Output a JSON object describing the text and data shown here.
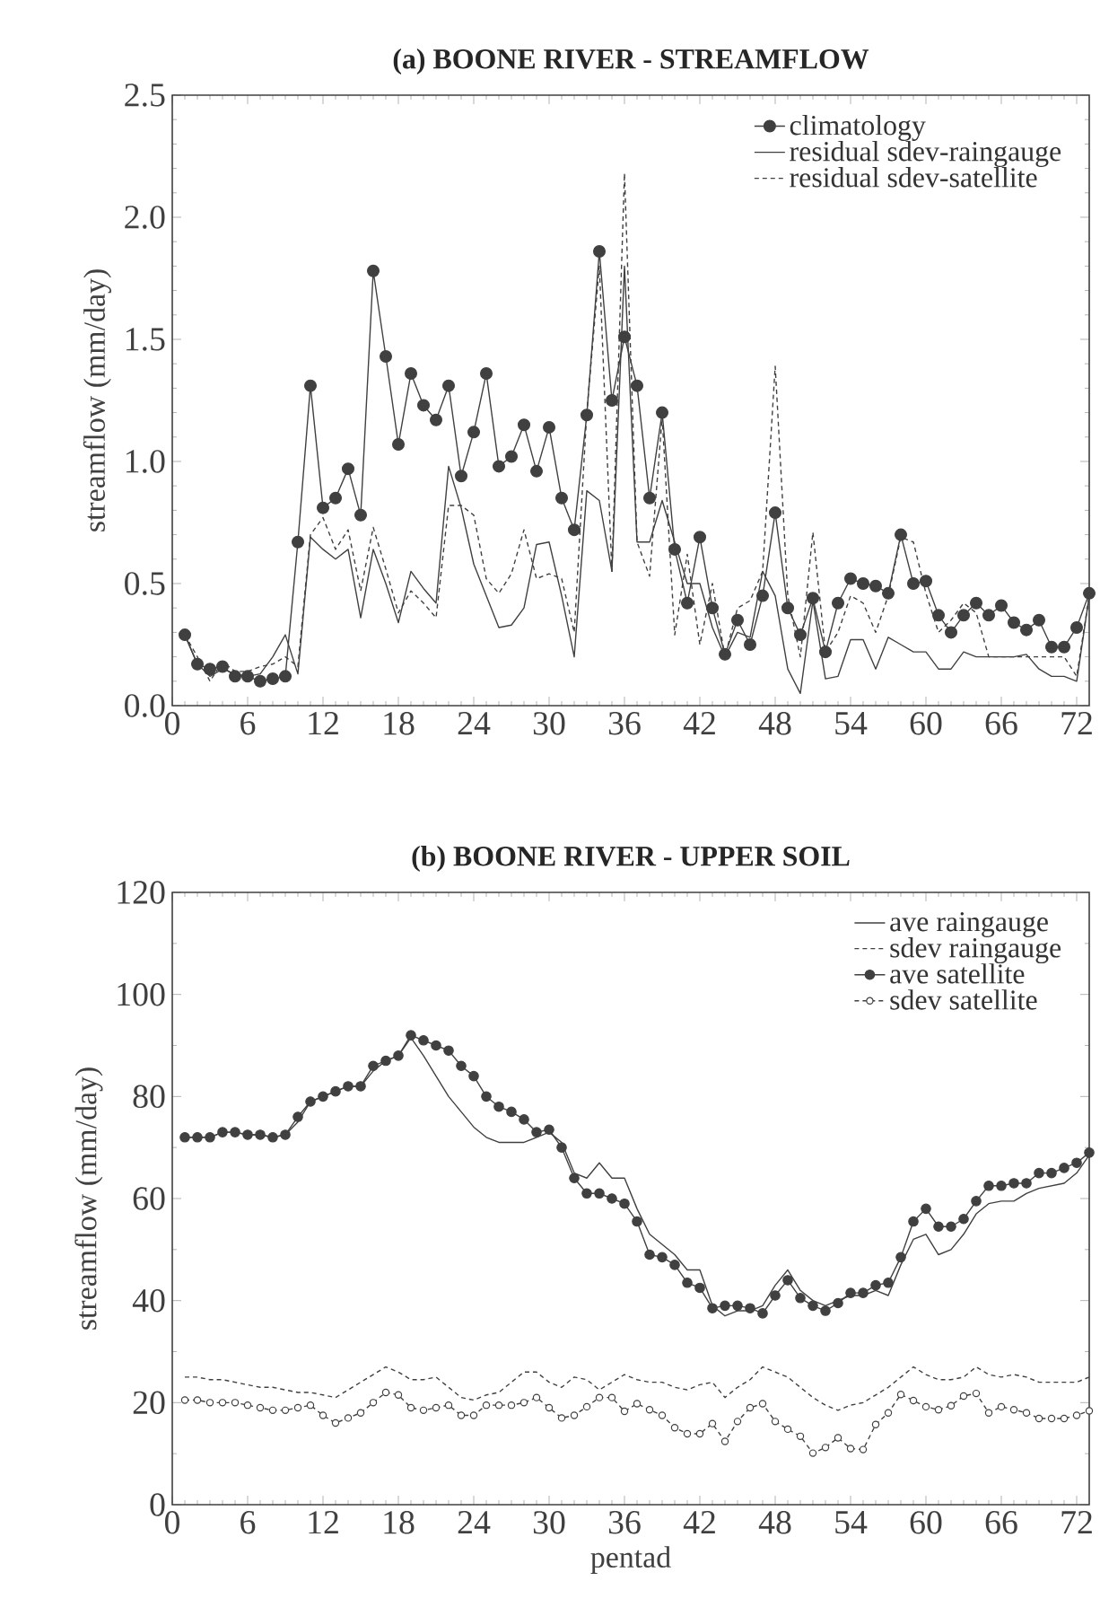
{
  "chart_data": [
    {
      "type": "line",
      "title": "(a) BOONE RIVER - STREAMFLOW",
      "ylabel": "streamflow (mm/day)",
      "x": [
        1,
        2,
        3,
        4,
        5,
        6,
        7,
        8,
        9,
        10,
        11,
        12,
        13,
        14,
        15,
        16,
        17,
        18,
        19,
        20,
        21,
        22,
        23,
        24,
        25,
        26,
        27,
        28,
        29,
        30,
        31,
        32,
        33,
        34,
        35,
        36,
        37,
        38,
        39,
        40,
        41,
        42,
        43,
        44,
        45,
        46,
        47,
        48,
        49,
        50,
        51,
        52,
        53,
        54,
        55,
        56,
        57,
        58,
        59,
        60,
        61,
        62,
        63,
        64,
        65,
        66,
        67,
        68,
        69,
        70,
        71,
        72,
        73
      ],
      "xlim": [
        0,
        73
      ],
      "xticks": [
        0,
        6,
        12,
        18,
        24,
        30,
        36,
        42,
        48,
        54,
        60,
        66,
        72
      ],
      "ylim": [
        0,
        2.5
      ],
      "yticks": [
        {
          "value": 0,
          "label": "0.0"
        },
        0.5,
        {
          "value": 1,
          "label": "1.0"
        },
        1.5,
        {
          "value": 2,
          "label": "2.0"
        },
        2.5
      ],
      "legend": "top right",
      "series": [
        {
          "name": "climatology",
          "color": "#404040",
          "marker": "circle",
          "line_style": "solid",
          "values": [
            0.29,
            0.17,
            0.15,
            0.16,
            0.12,
            0.12,
            0.1,
            0.11,
            0.12,
            0.67,
            1.31,
            0.81,
            0.85,
            0.97,
            0.78,
            1.78,
            1.43,
            1.07,
            1.36,
            1.23,
            1.17,
            1.31,
            0.94,
            1.12,
            1.36,
            0.98,
            1.02,
            1.15,
            0.96,
            1.14,
            0.85,
            0.72,
            1.19,
            1.86,
            1.25,
            1.51,
            1.31,
            0.85,
            1.2,
            0.64,
            0.42,
            0.69,
            0.4,
            0.21,
            0.35,
            0.25,
            0.45,
            0.79,
            0.4,
            0.29,
            0.44,
            0.22,
            0.42,
            0.52,
            0.5,
            0.49,
            0.46,
            0.7,
            0.5,
            0.51,
            0.37,
            0.3,
            0.37,
            0.42,
            0.37,
            0.41,
            0.34,
            0.31,
            0.35,
            0.24,
            0.24,
            0.32,
            0.46
          ]
        },
        {
          "name": "residual sdev-raingauge",
          "color": "#404040",
          "marker": "none",
          "line_style": "solid",
          "values": [
            0.29,
            0.17,
            0.12,
            0.15,
            0.13,
            0.12,
            0.13,
            0.2,
            0.29,
            0.13,
            0.69,
            0.64,
            0.6,
            0.64,
            0.36,
            0.64,
            0.5,
            0.34,
            0.55,
            0.48,
            0.42,
            0.98,
            0.81,
            0.58,
            0.45,
            0.32,
            0.33,
            0.4,
            0.66,
            0.67,
            0.45,
            0.2,
            0.88,
            0.84,
            0.55,
            1.8,
            0.67,
            0.67,
            0.84,
            0.67,
            0.5,
            0.5,
            0.32,
            0.2,
            0.3,
            0.28,
            0.55,
            0.45,
            0.15,
            0.05,
            0.43,
            0.11,
            0.12,
            0.27,
            0.27,
            0.15,
            0.28,
            0.25,
            0.22,
            0.22,
            0.15,
            0.15,
            0.22,
            0.2,
            0.2,
            0.2,
            0.2,
            0.21,
            0.15,
            0.12,
            0.12,
            0.1,
            0.45
          ]
        },
        {
          "name": "residual sdev-satellite",
          "color": "#404040",
          "marker": "none",
          "line_style": "dashed",
          "values": [
            0.29,
            0.2,
            0.1,
            0.18,
            0.14,
            0.14,
            0.16,
            0.17,
            0.2,
            0.16,
            0.7,
            0.77,
            0.64,
            0.72,
            0.47,
            0.73,
            0.56,
            0.38,
            0.47,
            0.42,
            0.36,
            0.82,
            0.82,
            0.78,
            0.52,
            0.46,
            0.54,
            0.72,
            0.52,
            0.54,
            0.52,
            0.3,
            1.2,
            1.8,
            0.55,
            2.18,
            0.67,
            0.53,
            1.18,
            0.29,
            0.62,
            0.25,
            0.5,
            0.2,
            0.4,
            0.43,
            0.55,
            1.39,
            0.45,
            0.2,
            0.71,
            0.22,
            0.3,
            0.45,
            0.42,
            0.3,
            0.45,
            0.69,
            0.67,
            0.46,
            0.3,
            0.35,
            0.42,
            0.38,
            0.2,
            0.2,
            0.2,
            0.2,
            0.2,
            0.2,
            0.2,
            0.12,
            0.45
          ]
        }
      ]
    },
    {
      "type": "line",
      "title": "(b) BOONE RIVER - UPPER SOIL",
      "xlabel": "pentad",
      "ylabel": "streamflow (mm/day)",
      "x": [
        1,
        2,
        3,
        4,
        5,
        6,
        7,
        8,
        9,
        10,
        11,
        12,
        13,
        14,
        15,
        16,
        17,
        18,
        19,
        20,
        21,
        22,
        23,
        24,
        25,
        26,
        27,
        28,
        29,
        30,
        31,
        32,
        33,
        34,
        35,
        36,
        37,
        38,
        39,
        40,
        41,
        42,
        43,
        44,
        45,
        46,
        47,
        48,
        49,
        50,
        51,
        52,
        53,
        54,
        55,
        56,
        57,
        58,
        59,
        60,
        61,
        62,
        63,
        64,
        65,
        66,
        67,
        68,
        69,
        70,
        71,
        72,
        73
      ],
      "xlim": [
        0,
        73
      ],
      "xticks": [
        0,
        6,
        12,
        18,
        24,
        30,
        36,
        42,
        48,
        54,
        60,
        66,
        72
      ],
      "ylim": [
        0,
        120
      ],
      "yticks": [
        0,
        20,
        40,
        60,
        80,
        100,
        120
      ],
      "legend": "top right",
      "series": [
        {
          "name": "ave raingauge",
          "color": "#404040",
          "marker": "none",
          "line_style": "solid",
          "values": [
            72,
            72,
            72,
            73,
            73,
            72.5,
            72.5,
            72,
            72.5,
            75,
            79,
            80,
            81,
            82,
            82,
            85,
            87,
            88,
            91.5,
            88,
            84,
            80,
            77,
            74,
            72,
            71,
            71,
            71,
            72,
            73,
            71,
            65,
            64,
            67,
            64,
            64,
            58,
            53,
            51,
            49,
            46,
            46,
            39,
            37,
            38,
            38,
            39,
            43,
            46,
            42,
            40,
            39,
            40,
            41,
            41,
            42,
            41,
            47,
            52,
            53,
            49,
            50,
            53,
            57,
            59,
            59.5,
            59.5,
            61,
            62,
            62.5,
            63,
            65,
            68.5
          ]
        },
        {
          "name": "sdev raingauge",
          "color": "#404040",
          "marker": "none",
          "line_style": "dashed",
          "values": [
            25,
            25,
            24.5,
            24.5,
            24,
            23.5,
            23,
            23,
            22.5,
            22,
            22,
            21.5,
            21,
            22.5,
            24,
            25.5,
            27,
            26,
            24.5,
            24.5,
            25,
            23,
            21,
            20.5,
            21.5,
            22,
            24,
            26,
            26,
            24,
            23,
            25,
            24.5,
            22.5,
            24,
            25.5,
            24.5,
            24,
            24,
            23,
            22.5,
            23.5,
            24,
            21,
            23,
            24.5,
            27,
            26,
            25,
            23,
            21,
            19.5,
            18.5,
            19.5,
            20,
            21.5,
            23,
            25,
            27,
            25.5,
            24.5,
            24.5,
            25,
            27,
            25.5,
            25,
            25.5,
            25,
            24,
            24,
            24,
            24,
            25
          ]
        },
        {
          "name": "ave satellite",
          "color": "#404040",
          "marker": "circle",
          "line_style": "solid",
          "values": [
            72,
            72,
            72,
            73,
            73,
            72.5,
            72.5,
            72,
            72.5,
            76,
            79,
            80,
            81,
            82,
            82,
            86,
            87,
            88,
            92,
            91,
            90,
            89,
            86,
            84,
            80,
            78,
            77,
            75.5,
            73,
            73.5,
            70,
            64,
            61,
            61,
            60,
            59,
            55.5,
            49,
            48.5,
            47,
            43.5,
            42.5,
            38.5,
            39,
            39,
            38.5,
            37.5,
            41,
            44,
            40.5,
            39,
            38,
            39.5,
            41.5,
            41.5,
            43,
            43.5,
            48.5,
            55.5,
            58,
            54.5,
            54.5,
            56,
            59.5,
            62.5,
            62.5,
            63,
            63,
            65,
            65,
            66,
            67,
            69
          ]
        },
        {
          "name": "sdev satellite",
          "color": "#404040",
          "marker": "circle",
          "line_style": "dashed",
          "values": [
            20.5,
            20.5,
            20,
            20,
            20,
            19.5,
            19,
            18.5,
            18.5,
            19,
            19.5,
            17.5,
            16,
            17,
            18,
            20,
            22,
            21.5,
            19,
            18.5,
            19,
            19.5,
            17.5,
            17.5,
            19.5,
            19.5,
            19.5,
            20,
            21,
            19,
            17,
            17.5,
            19.2,
            21,
            21,
            18.3,
            19.8,
            18.6,
            17.5,
            15.1,
            13.9,
            13.9,
            15.9,
            12.4,
            16.3,
            19,
            19.8,
            16.3,
            14.8,
            13.4,
            10.1,
            11.2,
            13.1,
            11,
            10.8,
            15.7,
            18,
            21.6,
            20.4,
            19.2,
            18.6,
            19.4,
            21.3,
            21.8,
            18,
            19.2,
            18.6,
            18,
            16.9,
            16.9,
            16.9,
            17.5,
            18.4
          ]
        }
      ]
    }
  ]
}
